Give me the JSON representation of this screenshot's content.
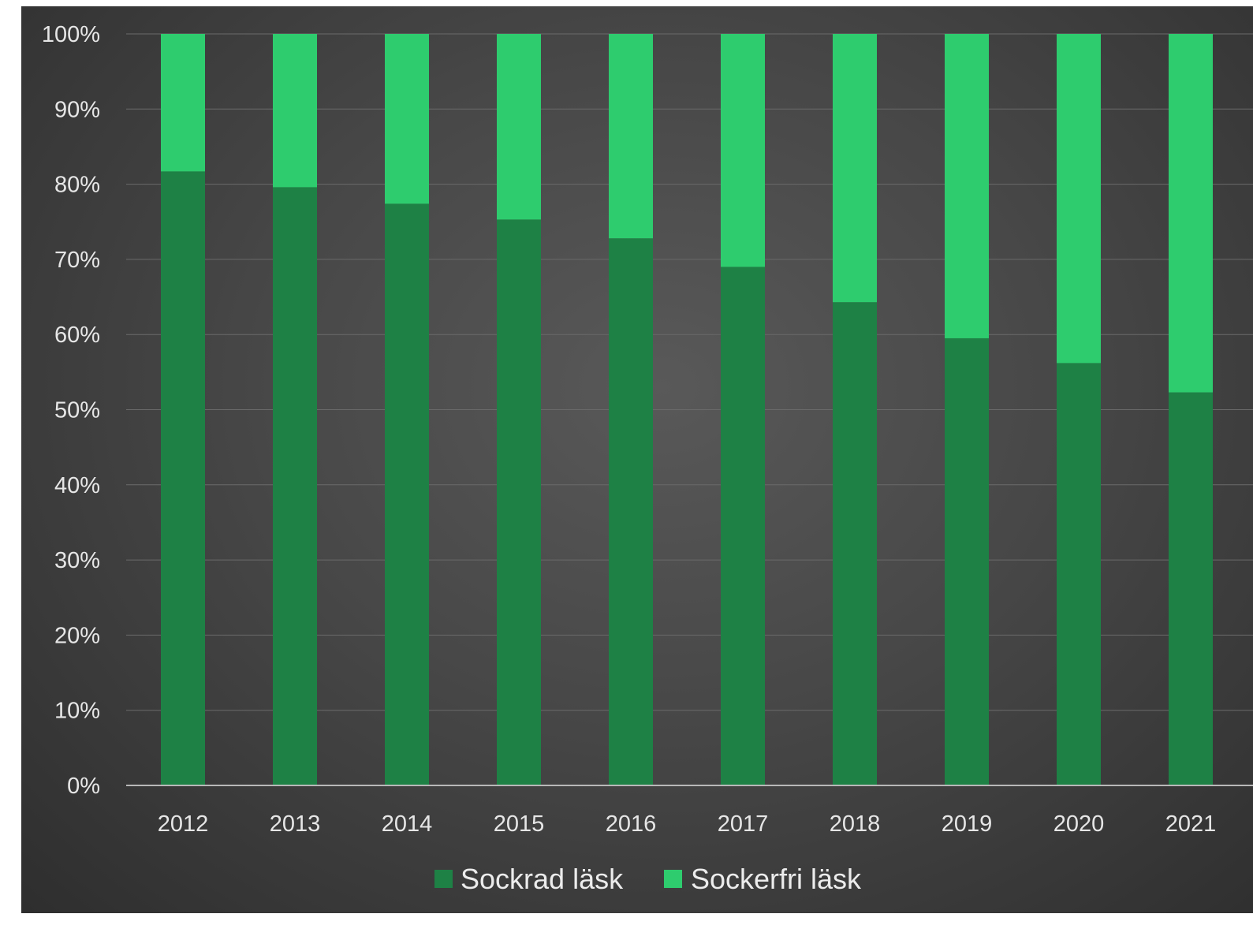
{
  "chart_data": {
    "type": "bar",
    "stacked": true,
    "categories": [
      "2012",
      "2013",
      "2014",
      "2015",
      "2016",
      "2017",
      "2018",
      "2019",
      "2020",
      "2021"
    ],
    "series": [
      {
        "name": "Sockrad läsk",
        "color": "#1e8145",
        "values": [
          0.817,
          0.796,
          0.774,
          0.753,
          0.728,
          0.69,
          0.643,
          0.595,
          0.562,
          0.523
        ]
      },
      {
        "name": "Sockerfri läsk",
        "color": "#2ecc6e",
        "values": [
          0.183,
          0.204,
          0.226,
          0.247,
          0.272,
          0.31,
          0.357,
          0.405,
          0.438,
          0.477
        ]
      }
    ],
    "y_ticks": [
      "0%",
      "10%",
      "20%",
      "30%",
      "40%",
      "50%",
      "60%",
      "70%",
      "80%",
      "90%",
      "100%"
    ],
    "ylim": [
      0,
      1
    ],
    "title": "",
    "xlabel": "",
    "ylabel": "",
    "grid": true,
    "legend_position": "bottom",
    "background": "#474747"
  }
}
